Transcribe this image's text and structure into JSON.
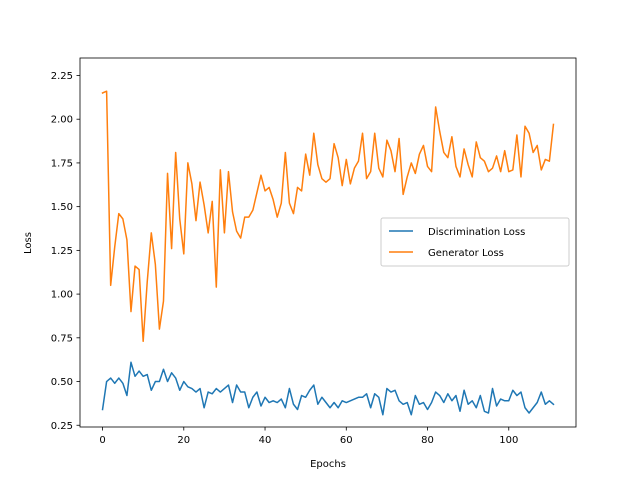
{
  "chart_data": {
    "type": "line",
    "title": "",
    "xlabel": "Epochs",
    "ylabel": "Loss",
    "xlim": [
      -5.55,
      116.55
    ],
    "ylim": [
      0.24,
      2.35
    ],
    "xticks": [
      0,
      20,
      40,
      60,
      80,
      100
    ],
    "yticks": [
      0.25,
      0.5,
      0.75,
      1.0,
      1.25,
      1.5,
      1.75,
      2.0,
      2.25
    ],
    "ytick_labels": [
      "0.25",
      "0.50",
      "0.75",
      "1.00",
      "1.25",
      "1.50",
      "1.75",
      "2.00",
      "2.25"
    ],
    "grid": false,
    "legend_position": "center-right",
    "x": [
      0,
      1,
      2,
      3,
      4,
      5,
      6,
      7,
      8,
      9,
      10,
      11,
      12,
      13,
      14,
      15,
      16,
      17,
      18,
      19,
      20,
      21,
      22,
      23,
      24,
      25,
      26,
      27,
      28,
      29,
      30,
      31,
      32,
      33,
      34,
      35,
      36,
      37,
      38,
      39,
      40,
      41,
      42,
      43,
      44,
      45,
      46,
      47,
      48,
      49,
      50,
      51,
      52,
      53,
      54,
      55,
      56,
      57,
      58,
      59,
      60,
      61,
      62,
      63,
      64,
      65,
      66,
      67,
      68,
      69,
      70,
      71,
      72,
      73,
      74,
      75,
      76,
      77,
      78,
      79,
      80,
      81,
      82,
      83,
      84,
      85,
      86,
      87,
      88,
      89,
      90,
      91,
      92,
      93,
      94,
      95,
      96,
      97,
      98,
      99,
      100,
      101,
      102,
      103,
      104,
      105,
      106,
      107,
      108,
      109,
      110,
      111
    ],
    "series": [
      {
        "name": "Discrimination Loss",
        "color": "#1f77b4",
        "values": [
          0.34,
          0.5,
          0.52,
          0.49,
          0.52,
          0.49,
          0.42,
          0.61,
          0.53,
          0.56,
          0.53,
          0.54,
          0.45,
          0.5,
          0.5,
          0.57,
          0.5,
          0.55,
          0.52,
          0.45,
          0.5,
          0.47,
          0.46,
          0.44,
          0.46,
          0.35,
          0.44,
          0.43,
          0.46,
          0.44,
          0.46,
          0.48,
          0.38,
          0.48,
          0.44,
          0.44,
          0.35,
          0.41,
          0.44,
          0.36,
          0.41,
          0.38,
          0.39,
          0.38,
          0.4,
          0.35,
          0.46,
          0.37,
          0.34,
          0.42,
          0.41,
          0.45,
          0.48,
          0.37,
          0.41,
          0.38,
          0.35,
          0.38,
          0.35,
          0.39,
          0.38,
          0.39,
          0.4,
          0.41,
          0.41,
          0.43,
          0.35,
          0.43,
          0.41,
          0.31,
          0.46,
          0.44,
          0.45,
          0.39,
          0.37,
          0.38,
          0.31,
          0.42,
          0.37,
          0.38,
          0.34,
          0.38,
          0.44,
          0.42,
          0.38,
          0.43,
          0.39,
          0.42,
          0.33,
          0.45,
          0.37,
          0.39,
          0.35,
          0.42,
          0.33,
          0.32,
          0.46,
          0.36,
          0.4,
          0.39,
          0.39,
          0.45,
          0.42,
          0.44,
          0.35,
          0.32,
          0.35,
          0.38,
          0.44,
          0.37,
          0.39,
          0.37
        ]
      },
      {
        "name": "Generator Loss",
        "color": "#ff7f0e",
        "values": [
          2.15,
          2.16,
          1.05,
          1.27,
          1.46,
          1.43,
          1.31,
          0.9,
          1.16,
          1.14,
          0.73,
          1.07,
          1.35,
          1.17,
          0.8,
          0.96,
          1.69,
          1.26,
          1.81,
          1.43,
          1.23,
          1.75,
          1.63,
          1.42,
          1.64,
          1.51,
          1.35,
          1.53,
          1.04,
          1.71,
          1.35,
          1.7,
          1.47,
          1.36,
          1.32,
          1.44,
          1.44,
          1.48,
          1.58,
          1.68,
          1.59,
          1.61,
          1.54,
          1.44,
          1.52,
          1.81,
          1.52,
          1.46,
          1.61,
          1.59,
          1.8,
          1.68,
          1.92,
          1.74,
          1.66,
          1.64,
          1.66,
          1.86,
          1.78,
          1.62,
          1.77,
          1.63,
          1.72,
          1.76,
          1.92,
          1.66,
          1.7,
          1.92,
          1.72,
          1.67,
          1.88,
          1.82,
          1.7,
          1.89,
          1.57,
          1.67,
          1.75,
          1.69,
          1.8,
          1.85,
          1.73,
          1.7,
          2.07,
          1.93,
          1.81,
          1.78,
          1.9,
          1.73,
          1.67,
          1.83,
          1.74,
          1.67,
          1.87,
          1.78,
          1.76,
          1.7,
          1.72,
          1.79,
          1.7,
          1.82,
          1.7,
          1.71,
          1.91,
          1.67,
          1.96,
          1.92,
          1.81,
          1.85,
          1.71,
          1.77,
          1.76,
          1.97
        ]
      }
    ]
  }
}
